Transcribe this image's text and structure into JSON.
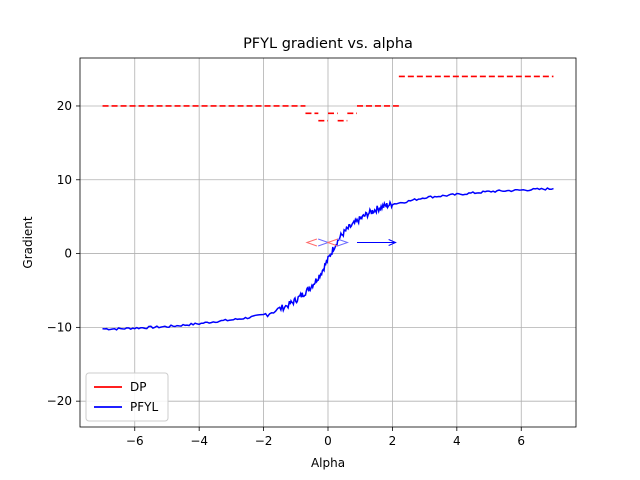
{
  "chart_data": {
    "type": "line",
    "title": "PFYL gradient vs. alpha",
    "xlabel": "Alpha",
    "ylabel": "Gradient",
    "xlim": [
      -7.7,
      7.7
    ],
    "ylim": [
      -23.5,
      26.5
    ],
    "xticks": [
      -6,
      -4,
      -2,
      0,
      2,
      4,
      6
    ],
    "yticks": [
      -20,
      -10,
      0,
      10,
      20
    ],
    "grid": true,
    "legend_position": "lower-left",
    "series": [
      {
        "name": "DP",
        "color": "#ff0000",
        "style": "dashed-steps",
        "segments": [
          {
            "x0": -7.0,
            "x1": -0.7,
            "y": 20
          },
          {
            "x0": -0.7,
            "x1": -0.3,
            "y": 19
          },
          {
            "x0": -0.3,
            "x1": 0.0,
            "y": 18
          },
          {
            "x0": 0.0,
            "x1": 0.3,
            "y": 19
          },
          {
            "x0": 0.3,
            "x1": 0.6,
            "y": 18
          },
          {
            "x0": 0.6,
            "x1": 0.9,
            "y": 19
          },
          {
            "x0": 0.9,
            "x1": 2.2,
            "y": 20
          },
          {
            "x0": 2.2,
            "x1": 7.0,
            "y": 24
          }
        ]
      },
      {
        "name": "PFYL",
        "color": "#0000ff",
        "style": "solid",
        "x": [
          -7.0,
          -6.5,
          -6.0,
          -5.5,
          -5.0,
          -4.5,
          -4.0,
          -3.5,
          -3.0,
          -2.5,
          -2.0,
          -1.5,
          -1.2,
          -1.0,
          -0.8,
          -0.6,
          -0.4,
          -0.2,
          0.0,
          0.2,
          0.4,
          0.6,
          0.8,
          1.0,
          1.2,
          1.4,
          1.6,
          1.8,
          2.0,
          2.5,
          3.0,
          3.5,
          4.0,
          4.5,
          5.0,
          5.5,
          6.0,
          6.5,
          7.0
        ],
        "y": [
          -10.2,
          -10.2,
          -10.1,
          -10.0,
          -9.9,
          -9.7,
          -9.5,
          -9.2,
          -9.0,
          -8.7,
          -8.3,
          -7.5,
          -6.9,
          -6.3,
          -5.6,
          -4.8,
          -3.8,
          -2.5,
          -0.8,
          1.0,
          2.4,
          3.3,
          4.0,
          4.7,
          5.3,
          5.8,
          6.2,
          6.5,
          6.7,
          7.1,
          7.6,
          7.8,
          8.0,
          8.2,
          8.4,
          8.5,
          8.6,
          8.7,
          8.8
        ]
      }
    ],
    "annotations": [
      {
        "type": "arrow",
        "color": "#0000ff",
        "x0": 0.9,
        "x1": 2.1,
        "y": 1.5,
        "direction": "right"
      },
      {
        "type": "markers",
        "color": "#ff6b6b",
        "y": 1.5,
        "points": [
          -0.5,
          -0.15,
          0.15,
          0.45
        ],
        "glyphs": [
          "<",
          ">",
          "<",
          ">"
        ]
      }
    ]
  }
}
